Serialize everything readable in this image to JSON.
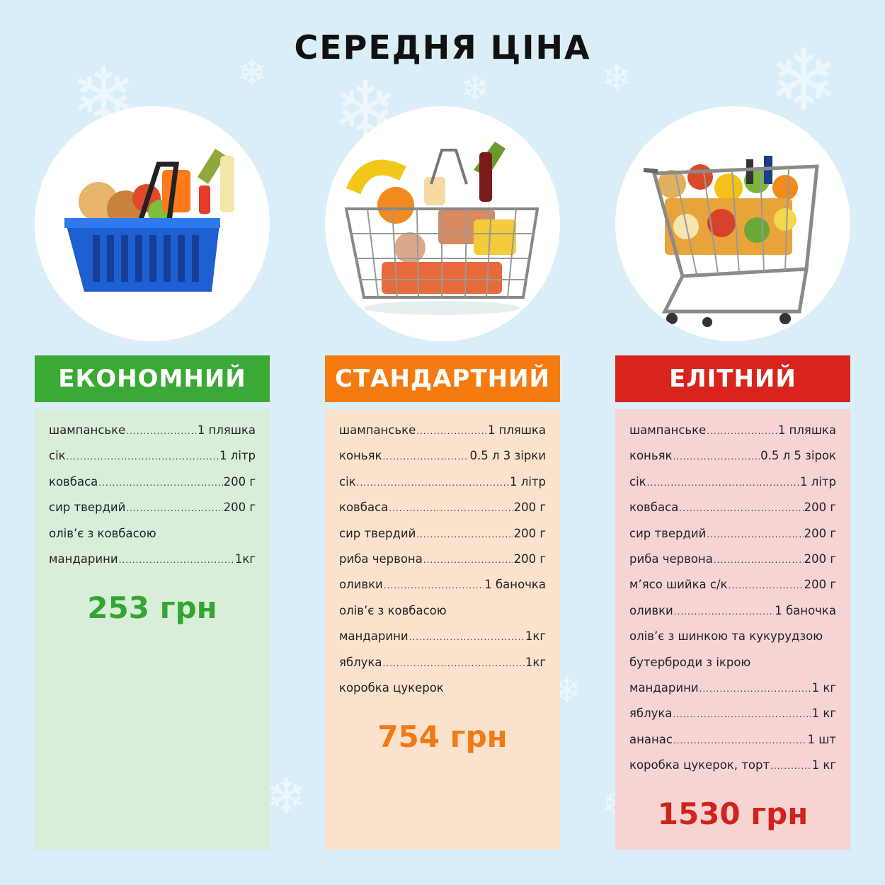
{
  "title": "СЕРЕДНЯ ЦІНА",
  "colors": {
    "background": "#d9eef8",
    "economy": "#3aa935",
    "standard": "#f57b10",
    "elite": "#d9241d"
  },
  "columns": [
    {
      "header": "ЕКОНОМНИЙ",
      "image": "basket-icon",
      "items": [
        {
          "name": "шампанське",
          "qty": "1 пляшка"
        },
        {
          "name": "сік",
          "qty": "1 літр"
        },
        {
          "name": "ковбаса",
          "qty": "200 г"
        },
        {
          "name": "сир твердий",
          "qty": "200 г"
        },
        {
          "name": "олів’є з ковбасою",
          "qty": ""
        },
        {
          "name": "мандарини",
          "qty": "1кг"
        }
      ],
      "price": "253 грн"
    },
    {
      "header": "СТАНДАРТНИЙ",
      "image": "wire-basket-icon",
      "items": [
        {
          "name": "шампанське",
          "qty": "1 пляшка"
        },
        {
          "name": "коньяк",
          "qty": "0.5 л 3 зірки"
        },
        {
          "name": "сік",
          "qty": "1 літр"
        },
        {
          "name": "ковбаса",
          "qty": "200 г"
        },
        {
          "name": "сир твердий",
          "qty": "200 г"
        },
        {
          "name": "риба червона",
          "qty": "200 г"
        },
        {
          "name": "оливки",
          "qty": "1 баночка"
        },
        {
          "name": "олів’є з ковбасою",
          "qty": ""
        },
        {
          "name": "мандарини",
          "qty": "1кг"
        },
        {
          "name": "яблука",
          "qty": "1кг"
        },
        {
          "name": "коробка цукерок",
          "qty": ""
        }
      ],
      "price": "754 грн"
    },
    {
      "header": "ЕЛІТНИЙ",
      "image": "shopping-cart-icon",
      "items": [
        {
          "name": "шампанське",
          "qty": "1 пляшка"
        },
        {
          "name": "коньяк",
          "qty": "0.5 л 5 зірок"
        },
        {
          "name": "сік",
          "qty": "1 літр"
        },
        {
          "name": "ковбаса",
          "qty": "200 г"
        },
        {
          "name": "сир твердий",
          "qty": "200 г"
        },
        {
          "name": "риба червона",
          "qty": "200 г"
        },
        {
          "name": "м’ясо шийка с/к",
          "qty": "200 г"
        },
        {
          "name": "оливки",
          "qty": "1 баночка"
        },
        {
          "name": "олів’є з шинкою та кукурудзою",
          "qty": ""
        },
        {
          "name": "бутерброди з ікрою",
          "qty": ""
        },
        {
          "name": "мандарини",
          "qty": "1 кг"
        },
        {
          "name": "яблука",
          "qty": "1 кг"
        },
        {
          "name": "ананас",
          "qty": "1 шт"
        },
        {
          "name": "коробка цукерок, торт",
          "qty": "1 кг"
        }
      ],
      "price": "1530 грн"
    }
  ]
}
